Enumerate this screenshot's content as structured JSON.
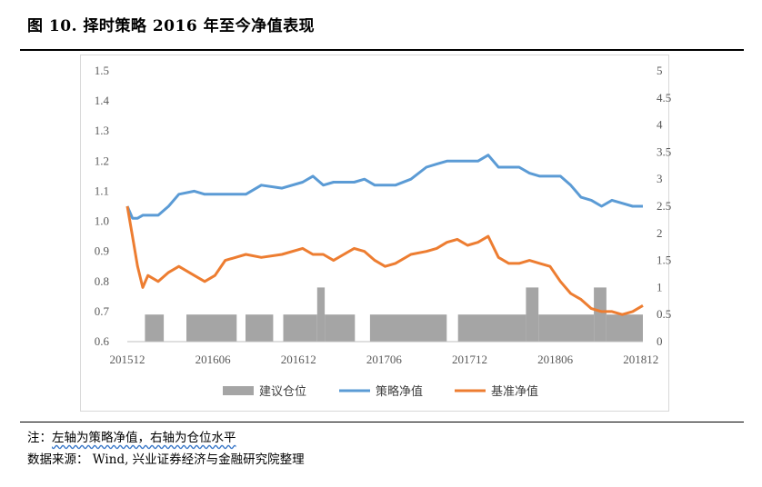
{
  "title": "图  10.  择时策略 2016 年至今净值表现",
  "notes": {
    "line1_prefix": "注：",
    "line1_text": "左轴为策略净值，右轴为仓位水平",
    "line2": "数据来源：  Wind, 兴业证券经济与金融研究院整理"
  },
  "colors": {
    "strategy": "#5b9bd5",
    "benchmark": "#ed7d31",
    "position": "#a5a5a5",
    "grid": "#d9d9d9"
  },
  "chart_data": {
    "type": "line",
    "x_tick_labels": [
      "201512",
      "201606",
      "201612",
      "201706",
      "201712",
      "201806",
      "201812"
    ],
    "x_range": [
      0,
      100
    ],
    "x_tick_positions": [
      0,
      16.6,
      33.2,
      49.8,
      66.4,
      83.0,
      99.6
    ],
    "left_axis": {
      "ylim": [
        0.6,
        1.5
      ],
      "ticks": [
        "1.5",
        "1.4",
        "1.3",
        "1.2",
        "1.1",
        "1.0",
        "0.9",
        "0.8",
        "0.7",
        "0.6"
      ]
    },
    "right_axis": {
      "ylim": [
        0,
        5
      ],
      "ticks": [
        "5",
        "4.5",
        "4",
        "3.5",
        "3",
        "2.5",
        "2",
        "1.5",
        "1",
        "0.5",
        "0"
      ]
    },
    "series": [
      {
        "name": "建议仓位",
        "type": "bar",
        "axis": "right",
        "segments": [
          {
            "x": [
              0,
              7
            ],
            "value": 0
          },
          {
            "x": [
              7,
              14.5
            ],
            "value": 0.5
          },
          {
            "x": [
              14.5,
              23.5
            ],
            "value": 0
          },
          {
            "x": [
              23.5,
              43.5
            ],
            "value": 0.5
          },
          {
            "x": [
              43.5,
              47
            ],
            "value": 0
          },
          {
            "x": [
              47,
              58
            ],
            "value": 0.5
          },
          {
            "x": [
              58,
              62
            ],
            "value": 0
          },
          {
            "x": [
              62,
              75.5
            ],
            "value": 0.5
          },
          {
            "x": [
              75.5,
              78.5
            ],
            "value": 1.0
          },
          {
            "x": [
              78.5,
              90.5
            ],
            "value": 0.5
          },
          {
            "x": [
              90.5,
              96.5
            ],
            "value": 0
          },
          {
            "x": [
              96.5,
              127
            ],
            "value": 0.5
          },
          {
            "x": [
              127,
              131.5
            ],
            "value": 0
          },
          {
            "x": [
              131.5,
              158.5
            ],
            "value": 0.5
          },
          {
            "x": [
              158.5,
              163.5
            ],
            "value": 1.0
          },
          {
            "x": [
              163.5,
              185.5
            ],
            "value": 0.5
          },
          {
            "x": [
              185.5,
              190.5
            ],
            "value": 1.0
          },
          {
            "x": [
              190.5,
              205
            ],
            "value": 0.5
          }
        ]
      },
      {
        "name": "策略净值",
        "axis": "left",
        "x": [
          0,
          1,
          2,
          3,
          6,
          8,
          10,
          13,
          15,
          17,
          19,
          21,
          23,
          26,
          30,
          34,
          36,
          38,
          40,
          42,
          44,
          46,
          48,
          50,
          52,
          55,
          58,
          60,
          62,
          64,
          66,
          68,
          70,
          72,
          74,
          76,
          78,
          80,
          82,
          84,
          86,
          88,
          90,
          92,
          94,
          96,
          98,
          100
        ],
        "values": [
          1.05,
          1.01,
          1.01,
          1.02,
          1.02,
          1.05,
          1.09,
          1.1,
          1.09,
          1.09,
          1.09,
          1.09,
          1.09,
          1.12,
          1.11,
          1.13,
          1.15,
          1.12,
          1.13,
          1.13,
          1.13,
          1.14,
          1.12,
          1.12,
          1.12,
          1.14,
          1.18,
          1.19,
          1.2,
          1.2,
          1.2,
          1.2,
          1.22,
          1.18,
          1.18,
          1.18,
          1.16,
          1.15,
          1.15,
          1.15,
          1.12,
          1.08,
          1.07,
          1.05,
          1.07,
          1.06,
          1.05,
          1.05
        ]
      },
      {
        "name": "基准净值",
        "axis": "left",
        "x": [
          0,
          1,
          2,
          3,
          4,
          6,
          8,
          10,
          13,
          15,
          17,
          19,
          21,
          23,
          26,
          30,
          34,
          36,
          38,
          40,
          42,
          44,
          46,
          48,
          50,
          52,
          55,
          58,
          60,
          62,
          64,
          66,
          68,
          70,
          72,
          74,
          76,
          78,
          80,
          82,
          84,
          86,
          88,
          90,
          92,
          94,
          96,
          98,
          100
        ],
        "values": [
          1.05,
          0.95,
          0.85,
          0.78,
          0.82,
          0.8,
          0.83,
          0.85,
          0.82,
          0.8,
          0.82,
          0.87,
          0.88,
          0.89,
          0.88,
          0.89,
          0.91,
          0.89,
          0.89,
          0.87,
          0.89,
          0.91,
          0.9,
          0.87,
          0.85,
          0.86,
          0.89,
          0.9,
          0.91,
          0.93,
          0.94,
          0.92,
          0.93,
          0.95,
          0.88,
          0.86,
          0.86,
          0.87,
          0.86,
          0.85,
          0.8,
          0.76,
          0.74,
          0.71,
          0.7,
          0.7,
          0.69,
          0.7,
          0.72
        ]
      }
    ],
    "legend_position": "bottom",
    "grid": false
  }
}
